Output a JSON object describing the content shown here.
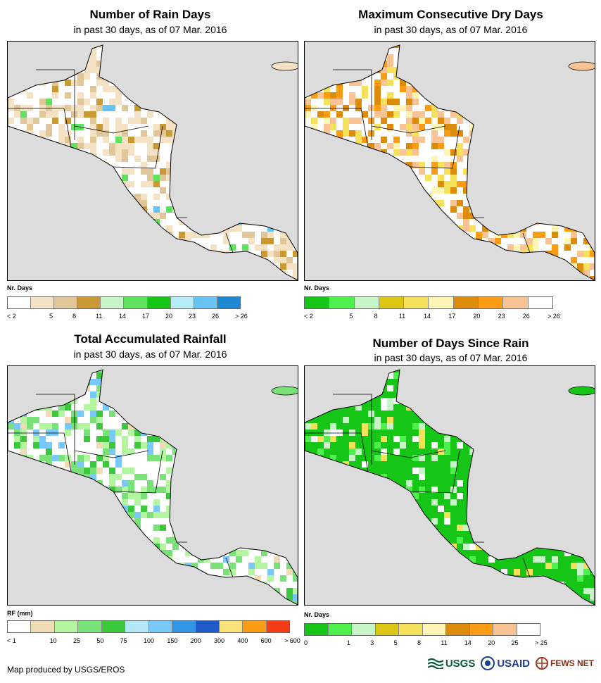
{
  "panels": [
    {
      "title": "Number of Rain Days",
      "subtitle": "in past 30 days, as of 07 Mar. 2016",
      "legend_title": "Nr. Days",
      "legend_colors": [
        "#ffffff",
        "#f5e2c4",
        "#e1c699",
        "#c99a34",
        "#c8f5c8",
        "#5fe35f",
        "#16c616",
        "#b6ecfa",
        "#68c3f3",
        "#1c88d2"
      ],
      "legend_labels": [
        "< 2",
        "5",
        "8",
        "11",
        "14",
        "17",
        "20",
        "23",
        "26",
        "> 26"
      ]
    },
    {
      "title": "Maximum Consecutive Dry Days",
      "subtitle": "in past 30 days, as of 07 Mar. 2016",
      "legend_title": "Nr. Days",
      "legend_colors": [
        "#16c616",
        "#4ef04e",
        "#c8f5c8",
        "#dcc814",
        "#f5e15a",
        "#fff5b4",
        "#dc8c0a",
        "#fa9d14",
        "#fac396",
        "#ffffff"
      ],
      "legend_labels": [
        "< 2",
        "5",
        "8",
        "11",
        "14",
        "17",
        "20",
        "23",
        "26",
        "> 26"
      ]
    },
    {
      "title": "Total Accumulated Rainfall",
      "subtitle": "in past 30 days, as of 07 Mar. 2016",
      "legend_title": "RF (mm)",
      "legend_colors": [
        "#ffffff",
        "#f0dcb4",
        "#b4f5a0",
        "#78e178",
        "#3cc83c",
        "#b4e6fa",
        "#78c8fa",
        "#3296e6",
        "#1e5ac8",
        "#fae178",
        "#fa9d14",
        "#f53c14"
      ],
      "legend_labels": [
        "< 1",
        "10",
        "25",
        "50",
        "75",
        "100",
        "150",
        "200",
        "300",
        "400",
        "600",
        "> 600"
      ]
    },
    {
      "title": "Number of Days Since Rain",
      "subtitle": "in past 30 days, as of 07 Mar. 2016",
      "legend_title": "Nr. Days",
      "legend_colors": [
        "#16c616",
        "#4ef04e",
        "#c8f5c8",
        "#dcc814",
        "#f5e15a",
        "#fff5b4",
        "#dc8c0a",
        "#fa9d14",
        "#fac396",
        "#ffffff"
      ],
      "legend_labels": [
        "0",
        "1",
        "3",
        "5",
        "8",
        "11",
        "14",
        "20",
        "25",
        "> 25"
      ]
    }
  ],
  "credit": "Map produced by USGS/EROS",
  "logos": [
    "USGS",
    "USAID",
    "FEWS NET"
  ]
}
